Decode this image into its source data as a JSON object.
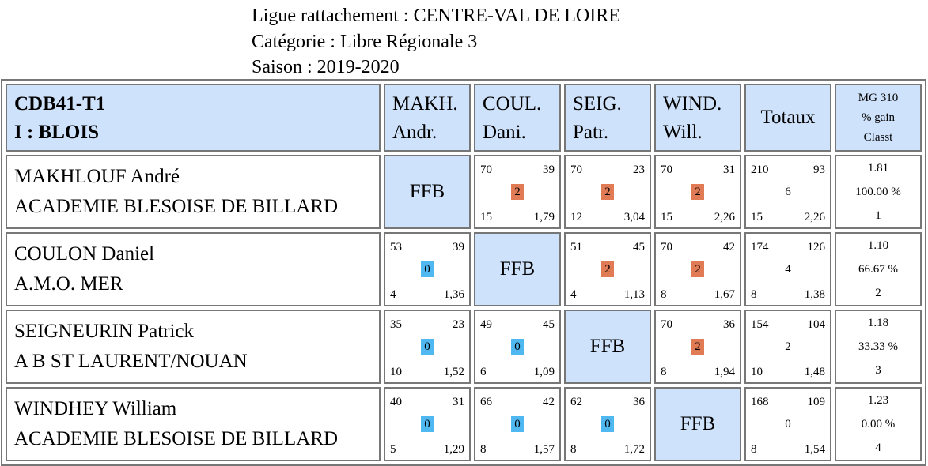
{
  "header": {
    "ligue": "Ligue rattachement : CENTRE-VAL DE LOIRE",
    "categorie": "Catégorie : Libre Régionale 3",
    "saison": "Saison : 2019-2020"
  },
  "table": {
    "club_line1": "CDB41-T1",
    "club_line2": "I : BLOIS",
    "columns": [
      {
        "l1": "MAKH.",
        "l2": "Andr."
      },
      {
        "l1": "COUL.",
        "l2": "Dani."
      },
      {
        "l1": "SEIG.",
        "l2": "Patr."
      },
      {
        "l1": "WIND.",
        "l2": "Will."
      }
    ],
    "totaux_label": "Totaux",
    "mg_label": {
      "l1": "MG 310",
      "l2": "% gain",
      "l3": "Classt"
    },
    "ffb_label": "FFB",
    "colors": {
      "win": "#e07b56",
      "loss": "#4fb8f0",
      "header_bg": "#cfe2fb"
    },
    "rows": [
      {
        "name": "MAKHLOUF André",
        "club": "ACADEMIE BLESOISE DE BILLARD",
        "cells": [
          null,
          {
            "tl": "70",
            "tr": "39",
            "pts": "2",
            "bl": "15",
            "br": "1,79"
          },
          {
            "tl": "70",
            "tr": "23",
            "pts": "2",
            "bl": "12",
            "br": "3,04"
          },
          {
            "tl": "70",
            "tr": "31",
            "pts": "2",
            "bl": "15",
            "br": "2,26"
          }
        ],
        "totals": {
          "tl": "210",
          "tr": "93",
          "mid": "6",
          "bl": "15",
          "br": "2,26"
        },
        "mg": "1.81",
        "pct": "100.00 %",
        "rank": "1"
      },
      {
        "name": "COULON Daniel",
        "club": "A.M.O. MER",
        "cells": [
          {
            "tl": "53",
            "tr": "39",
            "pts": "0",
            "bl": "4",
            "br": "1,36"
          },
          null,
          {
            "tl": "51",
            "tr": "45",
            "pts": "2",
            "bl": "4",
            "br": "1,13"
          },
          {
            "tl": "70",
            "tr": "42",
            "pts": "2",
            "bl": "8",
            "br": "1,67"
          }
        ],
        "totals": {
          "tl": "174",
          "tr": "126",
          "mid": "4",
          "bl": "8",
          "br": "1,38"
        },
        "mg": "1.10",
        "pct": "66.67 %",
        "rank": "2"
      },
      {
        "name": "SEIGNEURIN Patrick",
        "club": "A B ST LAURENT/NOUAN",
        "cells": [
          {
            "tl": "35",
            "tr": "23",
            "pts": "0",
            "bl": "10",
            "br": "1,52"
          },
          {
            "tl": "49",
            "tr": "45",
            "pts": "0",
            "bl": "6",
            "br": "1,09"
          },
          null,
          {
            "tl": "70",
            "tr": "36",
            "pts": "2",
            "bl": "8",
            "br": "1,94"
          }
        ],
        "totals": {
          "tl": "154",
          "tr": "104",
          "mid": "2",
          "bl": "10",
          "br": "1,48"
        },
        "mg": "1.18",
        "pct": "33.33 %",
        "rank": "3"
      },
      {
        "name": "WINDHEY William",
        "club": "ACADEMIE BLESOISE DE BILLARD",
        "cells": [
          {
            "tl": "40",
            "tr": "31",
            "pts": "0",
            "bl": "5",
            "br": "1,29"
          },
          {
            "tl": "66",
            "tr": "42",
            "pts": "0",
            "bl": "8",
            "br": "1,57"
          },
          {
            "tl": "62",
            "tr": "36",
            "pts": "0",
            "bl": "8",
            "br": "1,72"
          },
          null
        ],
        "totals": {
          "tl": "168",
          "tr": "109",
          "mid": "0",
          "bl": "8",
          "br": "1,54"
        },
        "mg": "1.23",
        "pct": "0.00 %",
        "rank": "4"
      }
    ]
  }
}
